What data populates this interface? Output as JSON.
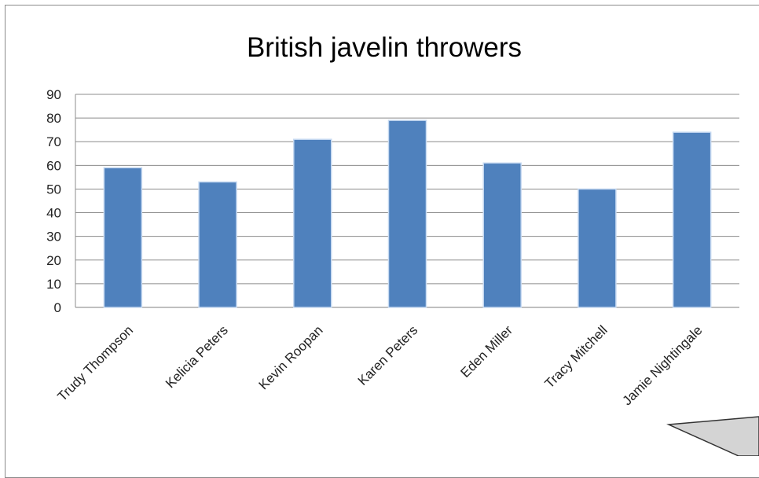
{
  "chart_data": {
    "type": "bar",
    "title": "British javelin throwers",
    "categories": [
      "Trudy Thompson",
      "Kelicia Peters",
      "Kevin Roopan",
      "Karen Peters",
      "Eden Miller",
      "Tracy Mitchell",
      "Jamie Nightingale"
    ],
    "values": [
      59,
      53,
      71,
      79,
      61,
      50,
      74
    ],
    "ylim": [
      0,
      90
    ],
    "yticks": [
      0,
      10,
      20,
      30,
      40,
      50,
      60,
      70,
      80,
      90
    ],
    "grid": true,
    "bar_color": "#4F81BD",
    "xlabel": "",
    "ylabel": ""
  }
}
